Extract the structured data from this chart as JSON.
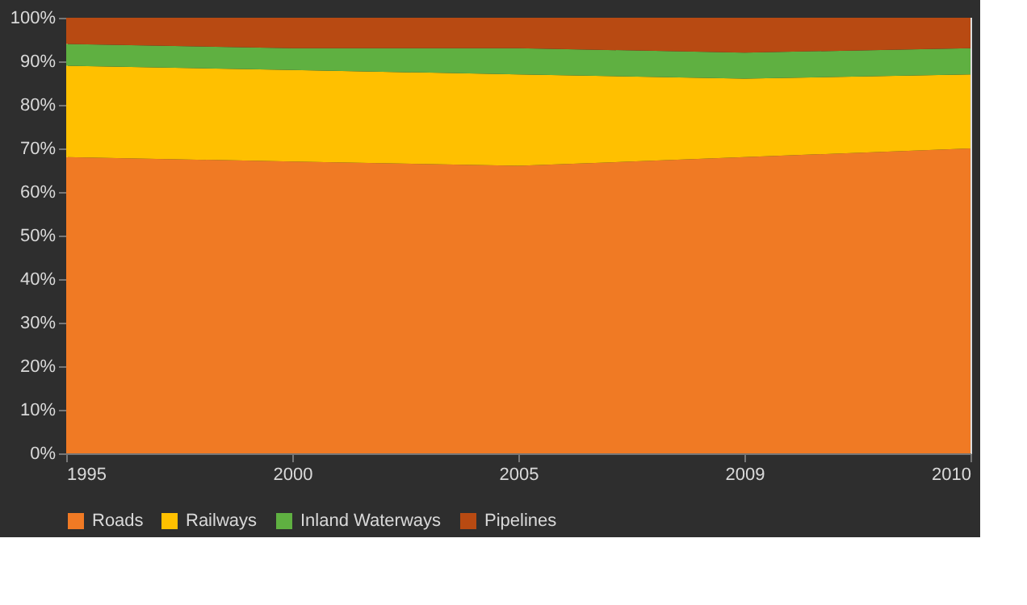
{
  "chart_data": {
    "type": "area",
    "stacked": true,
    "categories": [
      "1995",
      "2000",
      "2005",
      "2009",
      "2010"
    ],
    "series": [
      {
        "name": "Roads",
        "color": "#f07a24",
        "values": [
          68,
          67,
          66,
          68,
          70
        ]
      },
      {
        "name": "Railways",
        "color": "#ffc000",
        "values": [
          21,
          21,
          21,
          18,
          17
        ]
      },
      {
        "name": "Inland Waterways",
        "color": "#5fb041",
        "values": [
          5,
          5,
          6,
          6,
          6
        ]
      },
      {
        "name": "Pipelines",
        "color": "#b84a12",
        "values": [
          6,
          7,
          7,
          8,
          7
        ]
      }
    ],
    "ylim": [
      0,
      100
    ],
    "yticks": [
      {
        "value": 0,
        "label": "0%"
      },
      {
        "value": 10,
        "label": "10%"
      },
      {
        "value": 20,
        "label": "20%"
      },
      {
        "value": 30,
        "label": "30%"
      },
      {
        "value": 40,
        "label": "40%"
      },
      {
        "value": 50,
        "label": "50%"
      },
      {
        "value": 60,
        "label": "60%"
      },
      {
        "value": 70,
        "label": "70%"
      },
      {
        "value": 80,
        "label": "80%"
      },
      {
        "value": 90,
        "label": "90%"
      },
      {
        "value": 100,
        "label": "100%"
      }
    ],
    "grid": false,
    "legend": "bottom"
  }
}
